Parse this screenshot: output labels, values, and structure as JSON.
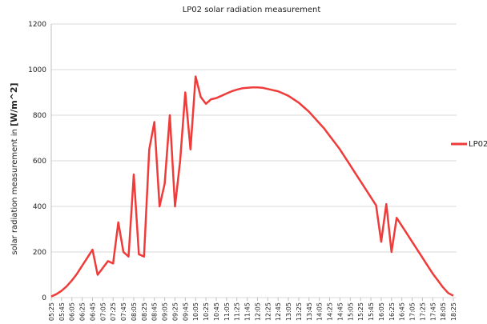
{
  "chart_data": {
    "type": "line",
    "title": "LP02 solar radiation measurement",
    "y_label": [
      "solar radiation measurement in",
      "[W/m^2]"
    ],
    "categories": [
      "05:25",
      null,
      "05:45",
      null,
      "06:05",
      null,
      "06:25",
      null,
      "06:45",
      null,
      "07:05",
      null,
      "07:25",
      null,
      "07:45",
      null,
      "08:05",
      null,
      "08:25",
      null,
      "08:45",
      null,
      "09:05",
      null,
      "09:25",
      null,
      "09:45",
      null,
      "10:05",
      null,
      "10:25",
      null,
      "10:45",
      null,
      "11:05",
      null,
      "11:25",
      null,
      "11:45",
      null,
      "12:05",
      null,
      "12:25",
      null,
      "12:45",
      null,
      "13:05",
      null,
      "13:25",
      null,
      "13:45",
      null,
      "14:05",
      null,
      "14:25",
      null,
      "14:45",
      null,
      "15:05",
      null,
      "15:25",
      null,
      "15:45",
      null,
      "16:05",
      null,
      "16:25",
      null,
      "16:45",
      null,
      "17:05",
      null,
      "17:25",
      null,
      "17:45",
      null,
      "18:05",
      null,
      "18:25"
    ],
    "series": [
      {
        "name": "LP02",
        "color": "#ef3b39",
        "values": [
          5,
          15,
          30,
          50,
          75,
          105,
          140,
          175,
          210,
          100,
          130,
          160,
          150,
          330,
          200,
          180,
          540,
          190,
          180,
          650,
          770,
          400,
          500,
          800,
          400,
          600,
          900,
          650,
          970,
          880,
          850,
          870,
          875,
          885,
          895,
          905,
          912,
          918,
          920,
          922,
          922,
          920,
          915,
          910,
          905,
          895,
          885,
          870,
          855,
          835,
          815,
          790,
          765,
          740,
          710,
          680,
          650,
          615,
          580,
          545,
          510,
          475,
          440,
          405,
          245,
          410,
          200,
          350,
          315,
          280,
          245,
          210,
          175,
          140,
          105,
          75,
          45,
          20,
          8
        ]
      }
    ],
    "ylim": [
      0,
      1200
    ],
    "yticks": [
      0,
      200,
      400,
      600,
      800,
      1000,
      1200
    ],
    "grid": true,
    "legend": "right"
  }
}
